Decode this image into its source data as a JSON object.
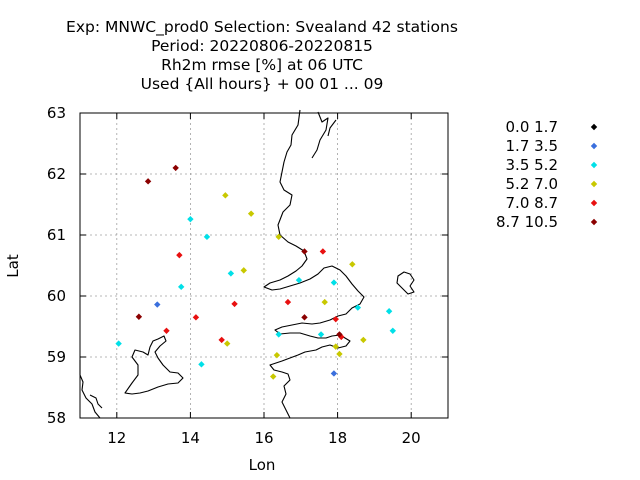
{
  "chart_data": {
    "type": "scatter",
    "title_lines": [
      "Exp: MNWC_prod0   Selection: Svealand      42 stations",
      "Period: 20220806-20220815",
      "Rh2m rmse [%] at  06 UTC",
      "Used {All hours} + 00 01 ... 09"
    ],
    "xlabel": "Lon",
    "ylabel": "Lat",
    "xlim": [
      11,
      21
    ],
    "ylim": [
      58,
      63
    ],
    "xticks": [
      12,
      14,
      16,
      18,
      20
    ],
    "yticks": [
      58,
      59,
      60,
      61,
      62,
      63
    ],
    "grid": true,
    "legend_position": "right",
    "series": [
      {
        "name": "0.0 1.7",
        "color": "#000000",
        "points": []
      },
      {
        "name": "1.7 3.5",
        "color": "#3a6fdd",
        "points": [
          [
            13.1,
            59.86
          ],
          [
            17.9,
            58.73
          ]
        ]
      },
      {
        "name": "3.5 5.2",
        "color": "#00e0e8",
        "points": [
          [
            12.05,
            59.22
          ],
          [
            13.75,
            60.15
          ],
          [
            14.0,
            61.26
          ],
          [
            14.45,
            60.97
          ],
          [
            14.3,
            58.88
          ],
          [
            15.1,
            60.37
          ],
          [
            16.4,
            59.37
          ],
          [
            16.95,
            60.26
          ],
          [
            17.55,
            59.37
          ],
          [
            17.9,
            60.22
          ],
          [
            18.55,
            59.81
          ],
          [
            19.4,
            59.75
          ],
          [
            19.5,
            59.43
          ]
        ]
      },
      {
        "name": "5.2 7.0",
        "color": "#c8c800",
        "points": [
          [
            14.95,
            61.65
          ],
          [
            15.65,
            61.35
          ],
          [
            16.4,
            60.97
          ],
          [
            15.45,
            60.42
          ],
          [
            15.0,
            59.22
          ],
          [
            16.35,
            59.03
          ],
          [
            16.25,
            58.68
          ],
          [
            17.65,
            59.9
          ],
          [
            18.4,
            60.52
          ],
          [
            18.05,
            59.05
          ],
          [
            18.7,
            59.28
          ],
          [
            17.95,
            59.17
          ]
        ]
      },
      {
        "name": "7.0 8.7",
        "color": "#e81010",
        "points": [
          [
            13.7,
            60.67
          ],
          [
            14.15,
            59.65
          ],
          [
            15.2,
            59.87
          ],
          [
            14.85,
            59.28
          ],
          [
            13.35,
            59.43
          ],
          [
            16.65,
            59.9
          ],
          [
            17.6,
            60.73
          ],
          [
            17.95,
            59.62
          ],
          [
            18.1,
            59.33
          ]
        ]
      },
      {
        "name": "8.7 10.5",
        "color": "#8b0000",
        "points": [
          [
            12.85,
            61.88
          ],
          [
            13.6,
            62.1
          ],
          [
            12.6,
            59.66
          ],
          [
            17.1,
            60.73
          ],
          [
            17.1,
            59.65
          ],
          [
            18.05,
            59.37
          ]
        ]
      }
    ]
  }
}
